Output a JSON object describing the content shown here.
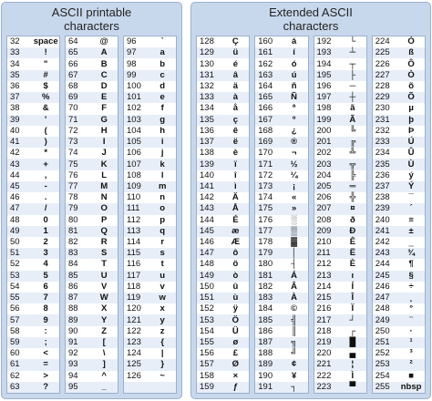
{
  "left": {
    "title": "ASCII printable\ncharacters",
    "columns": [
      {
        "codes": [
          "32",
          "33",
          "34",
          "35",
          "36",
          "37",
          "38",
          "39",
          "40",
          "41",
          "42",
          "43",
          "44",
          "45",
          "46",
          "47",
          "48",
          "49",
          "50",
          "51",
          "52",
          "53",
          "54",
          "55",
          "56",
          "57",
          "58",
          "59",
          "60",
          "61",
          "62",
          "63"
        ],
        "chars": [
          "space",
          "!",
          "\"",
          "#",
          "$",
          "%",
          "&",
          "'",
          "(",
          ")",
          "*",
          "+",
          ",",
          "-",
          ".",
          "/",
          "0",
          "1",
          "2",
          "3",
          "4",
          "5",
          "6",
          "7",
          "8",
          "9",
          ":",
          ";",
          "<",
          "=",
          ">",
          "?"
        ]
      },
      {
        "codes": [
          "64",
          "65",
          "66",
          "67",
          "68",
          "69",
          "70",
          "71",
          "72",
          "73",
          "74",
          "75",
          "76",
          "77",
          "78",
          "79",
          "80",
          "81",
          "82",
          "83",
          "84",
          "85",
          "86",
          "87",
          "88",
          "89",
          "90",
          "91",
          "92",
          "93",
          "94",
          "95"
        ],
        "chars": [
          "@",
          "A",
          "B",
          "C",
          "D",
          "E",
          "F",
          "G",
          "H",
          "I",
          "J",
          "K",
          "L",
          "M",
          "N",
          "O",
          "P",
          "Q",
          "R",
          "S",
          "T",
          "U",
          "V",
          "W",
          "X",
          "Y",
          "Z",
          "[",
          "\\",
          "]",
          "^",
          "_"
        ]
      },
      {
        "codes": [
          "96",
          "97",
          "98",
          "99",
          "100",
          "101",
          "102",
          "103",
          "104",
          "105",
          "106",
          "107",
          "108",
          "109",
          "110",
          "111",
          "112",
          "113",
          "114",
          "115",
          "116",
          "117",
          "118",
          "119",
          "120",
          "121",
          "122",
          "123",
          "124",
          "125",
          "126",
          ""
        ],
        "chars": [
          "`",
          "a",
          "b",
          "c",
          "d",
          "e",
          "f",
          "g",
          "h",
          "i",
          "j",
          "k",
          "l",
          "m",
          "n",
          "o",
          "p",
          "q",
          "r",
          "s",
          "t",
          "u",
          "v",
          "w",
          "x",
          "y",
          "z",
          "{",
          "|",
          "}",
          "~",
          ""
        ]
      }
    ]
  },
  "right": {
    "title": "Extended ASCII\ncharacters",
    "columns": [
      {
        "codes": [
          "128",
          "129",
          "130",
          "131",
          "132",
          "133",
          "134",
          "135",
          "136",
          "137",
          "138",
          "139",
          "140",
          "141",
          "142",
          "143",
          "144",
          "145",
          "146",
          "147",
          "148",
          "149",
          "150",
          "151",
          "152",
          "153",
          "154",
          "155",
          "156",
          "157",
          "158",
          "159"
        ],
        "chars": [
          "Ç",
          "ü",
          "é",
          "â",
          "ä",
          "à",
          "å",
          "ç",
          "ê",
          "ë",
          "è",
          "ï",
          "î",
          "ì",
          "Ä",
          "Å",
          "É",
          "æ",
          "Æ",
          "ô",
          "ö",
          "ò",
          "û",
          "ù",
          "ÿ",
          "Ö",
          "Ü",
          "ø",
          "£",
          "Ø",
          "×",
          "ƒ"
        ]
      },
      {
        "codes": [
          "160",
          "161",
          "162",
          "163",
          "164",
          "165",
          "166",
          "167",
          "168",
          "169",
          "170",
          "171",
          "172",
          "173",
          "174",
          "175",
          "176",
          "177",
          "178",
          "179",
          "180",
          "181",
          "182",
          "183",
          "184",
          "185",
          "186",
          "187",
          "188",
          "189",
          "190",
          "191"
        ],
        "chars": [
          "á",
          "í",
          "ó",
          "ú",
          "ñ",
          "Ñ",
          "ª",
          "º",
          "¿",
          "®",
          "¬",
          "½",
          "¼",
          "¡",
          "«",
          "»",
          "░",
          "▒",
          "▓",
          "│",
          "┤",
          "Á",
          "Â",
          "À",
          "©",
          "╣",
          "║",
          "╗",
          "╝",
          "¢",
          "¥",
          "┐"
        ]
      },
      {
        "codes": [
          "192",
          "193",
          "194",
          "195",
          "196",
          "197",
          "198",
          "199",
          "200",
          "201",
          "202",
          "203",
          "204",
          "205",
          "206",
          "207",
          "208",
          "209",
          "210",
          "211",
          "212",
          "213",
          "214",
          "215",
          "216",
          "217",
          "218",
          "219",
          "220",
          "221",
          "222",
          "223"
        ],
        "chars": [
          "└",
          "┴",
          "┬",
          "├",
          "─",
          "┼",
          "ã",
          "Ã",
          "╚",
          "╔",
          "╩",
          "╦",
          "╠",
          "═",
          "╬",
          "¤",
          "ð",
          "Ð",
          "Ê",
          "Ë",
          "È",
          "ı",
          "Í",
          "Î",
          "Ï",
          "┘",
          "┌",
          "█",
          "▄",
          "¦",
          "Ì",
          "▀"
        ]
      },
      {
        "codes": [
          "224",
          "225",
          "226",
          "227",
          "228",
          "229",
          "230",
          "231",
          "232",
          "233",
          "234",
          "235",
          "236",
          "237",
          "238",
          "239",
          "240",
          "241",
          "242",
          "243",
          "244",
          "245",
          "246",
          "247",
          "248",
          "249",
          "250",
          "251",
          "252",
          "253",
          "254",
          "255"
        ],
        "chars": [
          "Ó",
          "ß",
          "Ô",
          "Ò",
          "õ",
          "Õ",
          "µ",
          "þ",
          "Þ",
          "Ú",
          "Û",
          "Ù",
          "ý",
          "Ý",
          "¯",
          "´",
          "≡",
          "±",
          "‗",
          "¾",
          "¶",
          "§",
          "÷",
          "¸",
          "°",
          "¨",
          "·",
          "¹",
          "³",
          "²",
          "■",
          "nbsp"
        ]
      }
    ]
  }
}
